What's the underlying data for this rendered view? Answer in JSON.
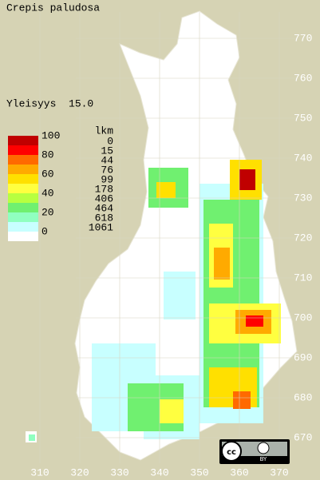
{
  "title": "Crepis paludosa",
  "frequency": "Yleisyys  15.0",
  "legend": {
    "scale_labels": [
      100,
      80,
      60,
      40,
      20,
      0
    ],
    "colors": [
      "#c00000",
      "#ff0000",
      "#ff6a00",
      "#ffaa00",
      "#ffe000",
      "#ffff40",
      "#b8ff40",
      "#70f070",
      "#90ffc0",
      "#c8ffff"
    ],
    "count_header": "lkm",
    "counts": [
      0,
      15,
      44,
      76,
      99,
      178,
      406,
      464,
      618,
      1061
    ]
  },
  "grid": {
    "y_labels": [
      770,
      760,
      750,
      740,
      730,
      720,
      710,
      700,
      690,
      680,
      670
    ],
    "x_labels": [
      310,
      320,
      330,
      340,
      350,
      360,
      370
    ]
  },
  "license": {
    "badge": "BY"
  }
}
